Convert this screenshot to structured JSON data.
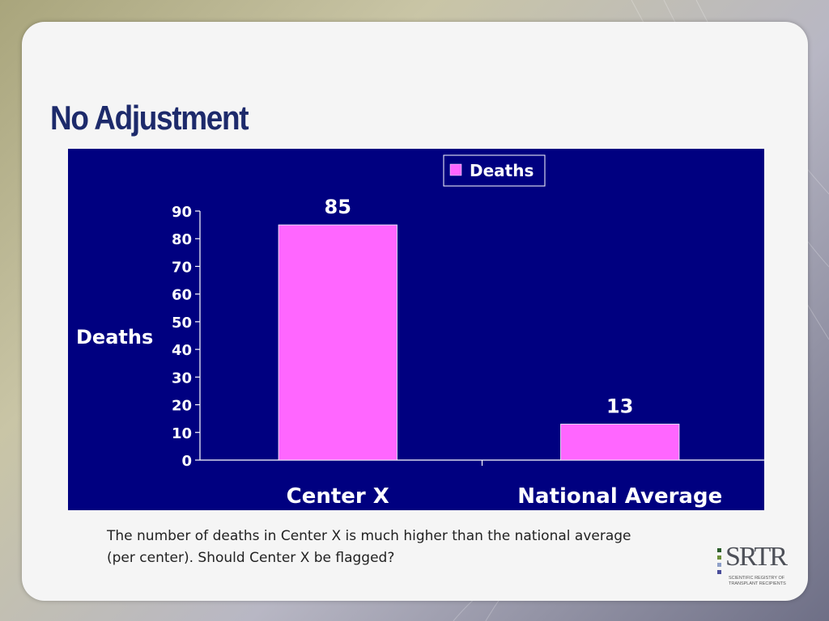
{
  "slide": {
    "title": "No Adjustment",
    "caption_line1": "The number of deaths in Center X is much higher than the national average",
    "caption_line2": "(per center). Should Center X be flagged?"
  },
  "logo": {
    "mark": "SRTR",
    "subtitle_line1": "Scientific Registry of",
    "subtitle_line2": "Transplant Recipients"
  },
  "colors": {
    "chart_background": "#000080",
    "bar": "#ff66ff",
    "title": "#1d2a6b"
  },
  "chart_data": {
    "type": "bar",
    "categories": [
      "Center X",
      "National Average"
    ],
    "series": [
      {
        "name": "Deaths",
        "values": [
          85,
          13
        ]
      }
    ],
    "data_labels": [
      "85",
      "13"
    ],
    "ylabel": "Deaths",
    "xlabel": "",
    "ylim": [
      0,
      90
    ],
    "yticks": [
      0,
      10,
      20,
      30,
      40,
      50,
      60,
      70,
      80,
      90
    ],
    "legend": "top-center",
    "grid": false
  }
}
